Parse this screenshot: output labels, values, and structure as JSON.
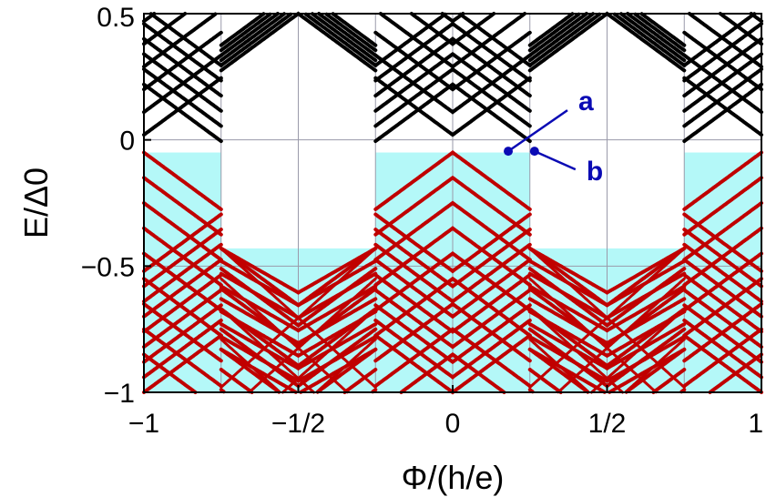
{
  "chart_data": {
    "type": "line",
    "xlabel": "Φ/(h/e)",
    "ylabel": "E/Δ0",
    "xlim": [
      -1,
      1
    ],
    "ylim": [
      -1,
      0.5
    ],
    "x_ticks": [
      {
        "value": -1,
        "label": "−1"
      },
      {
        "value": -0.5,
        "label": "−1/2"
      },
      {
        "value": 0,
        "label": "0"
      },
      {
        "value": 0.5,
        "label": "1/2"
      },
      {
        "value": 1,
        "label": "1"
      }
    ],
    "y_ticks": [
      {
        "value": 0.5,
        "label": "0.5"
      },
      {
        "value": 0,
        "label": "0"
      },
      {
        "value": -0.5,
        "label": "−0.5"
      },
      {
        "value": -1,
        "label": "−1"
      }
    ],
    "grid": true,
    "series": [
      {
        "group": "positive",
        "color": "#000000"
      },
      {
        "group": "negative",
        "color": "#c00000"
      }
    ],
    "occupied_region_color": "#b4f8f8",
    "occupied_segments": [
      {
        "x0": -1.0,
        "x1": -0.75,
        "ymax": -0.05
      },
      {
        "x0": -0.75,
        "x1": -0.25,
        "ymax": -0.43
      },
      {
        "x0": -0.25,
        "x1": 0.25,
        "ymax": -0.05
      },
      {
        "x0": 0.25,
        "x1": 0.75,
        "ymax": -0.43
      },
      {
        "x0": 0.75,
        "x1": 1.0,
        "ymax": -0.05
      }
    ],
    "annotations": [
      {
        "label": "a",
        "point": [
          0.18,
          -0.045
        ],
        "color": "#0a0ab4"
      },
      {
        "label": "b",
        "point": [
          0.265,
          -0.045
        ],
        "color": "#0a0ab4"
      }
    ]
  }
}
